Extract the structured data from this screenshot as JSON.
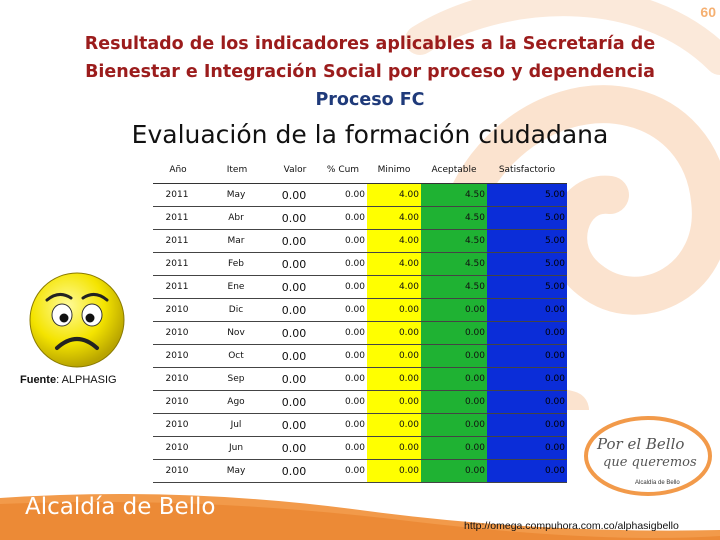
{
  "page": {
    "page_number": "60",
    "title_line1": "Resultado de los indicadores aplicables a la Secretaría de",
    "title_line2": "Bienestar e Integración Social por proceso y dependencia",
    "title_line3": "Proceso FC",
    "section_title": "Evaluación de la formación ciudadana"
  },
  "table": {
    "headers": [
      "Año",
      "Item",
      "Valor",
      "% Cum",
      "Minimo",
      "Aceptable",
      "Satisfactorio"
    ],
    "rows": [
      [
        "2011",
        "May",
        "0.00",
        "0.00",
        "4.00",
        "4.50",
        "5.00"
      ],
      [
        "2011",
        "Abr",
        "0.00",
        "0.00",
        "4.00",
        "4.50",
        "5.00"
      ],
      [
        "2011",
        "Mar",
        "0.00",
        "0.00",
        "4.00",
        "4.50",
        "5.00"
      ],
      [
        "2011",
        "Feb",
        "0.00",
        "0.00",
        "4.00",
        "4.50",
        "5.00"
      ],
      [
        "2011",
        "Ene",
        "0.00",
        "0.00",
        "4.00",
        "4.50",
        "5.00"
      ],
      [
        "2010",
        "Dic",
        "0.00",
        "0.00",
        "0.00",
        "0.00",
        "0.00"
      ],
      [
        "2010",
        "Nov",
        "0.00",
        "0.00",
        "0.00",
        "0.00",
        "0.00"
      ],
      [
        "2010",
        "Oct",
        "0.00",
        "0.00",
        "0.00",
        "0.00",
        "0.00"
      ],
      [
        "2010",
        "Sep",
        "0.00",
        "0.00",
        "0.00",
        "0.00",
        "0.00"
      ],
      [
        "2010",
        "Ago",
        "0.00",
        "0.00",
        "0.00",
        "0.00",
        "0.00"
      ],
      [
        "2010",
        "Jul",
        "0.00",
        "0.00",
        "0.00",
        "0.00",
        "0.00"
      ],
      [
        "2010",
        "Jun",
        "0.00",
        "0.00",
        "0.00",
        "0.00",
        "0.00"
      ],
      [
        "2010",
        "May",
        "0.00",
        "0.00",
        "0.00",
        "0.00",
        "0.00"
      ]
    ]
  },
  "source": {
    "label": "Fuente",
    "value": ": ALPHASIG"
  },
  "footer": {
    "org_name": "Alcaldía de Bello",
    "url": "http://omega.compuhora.com.co/alphasigbello"
  },
  "logo": {
    "line1": "Por el Bello",
    "line2": "que queremos",
    "caption": "Alcaldía de Bello"
  },
  "icons": {
    "smiley": "sad-face-icon"
  },
  "colors": {
    "minimo": "#ffff00",
    "aceptable": "#1fb233",
    "satisfactorio": "#0b2dd8",
    "title": "#9b1c1c",
    "process": "#1f3a7a",
    "accent": "#f29a4a"
  }
}
